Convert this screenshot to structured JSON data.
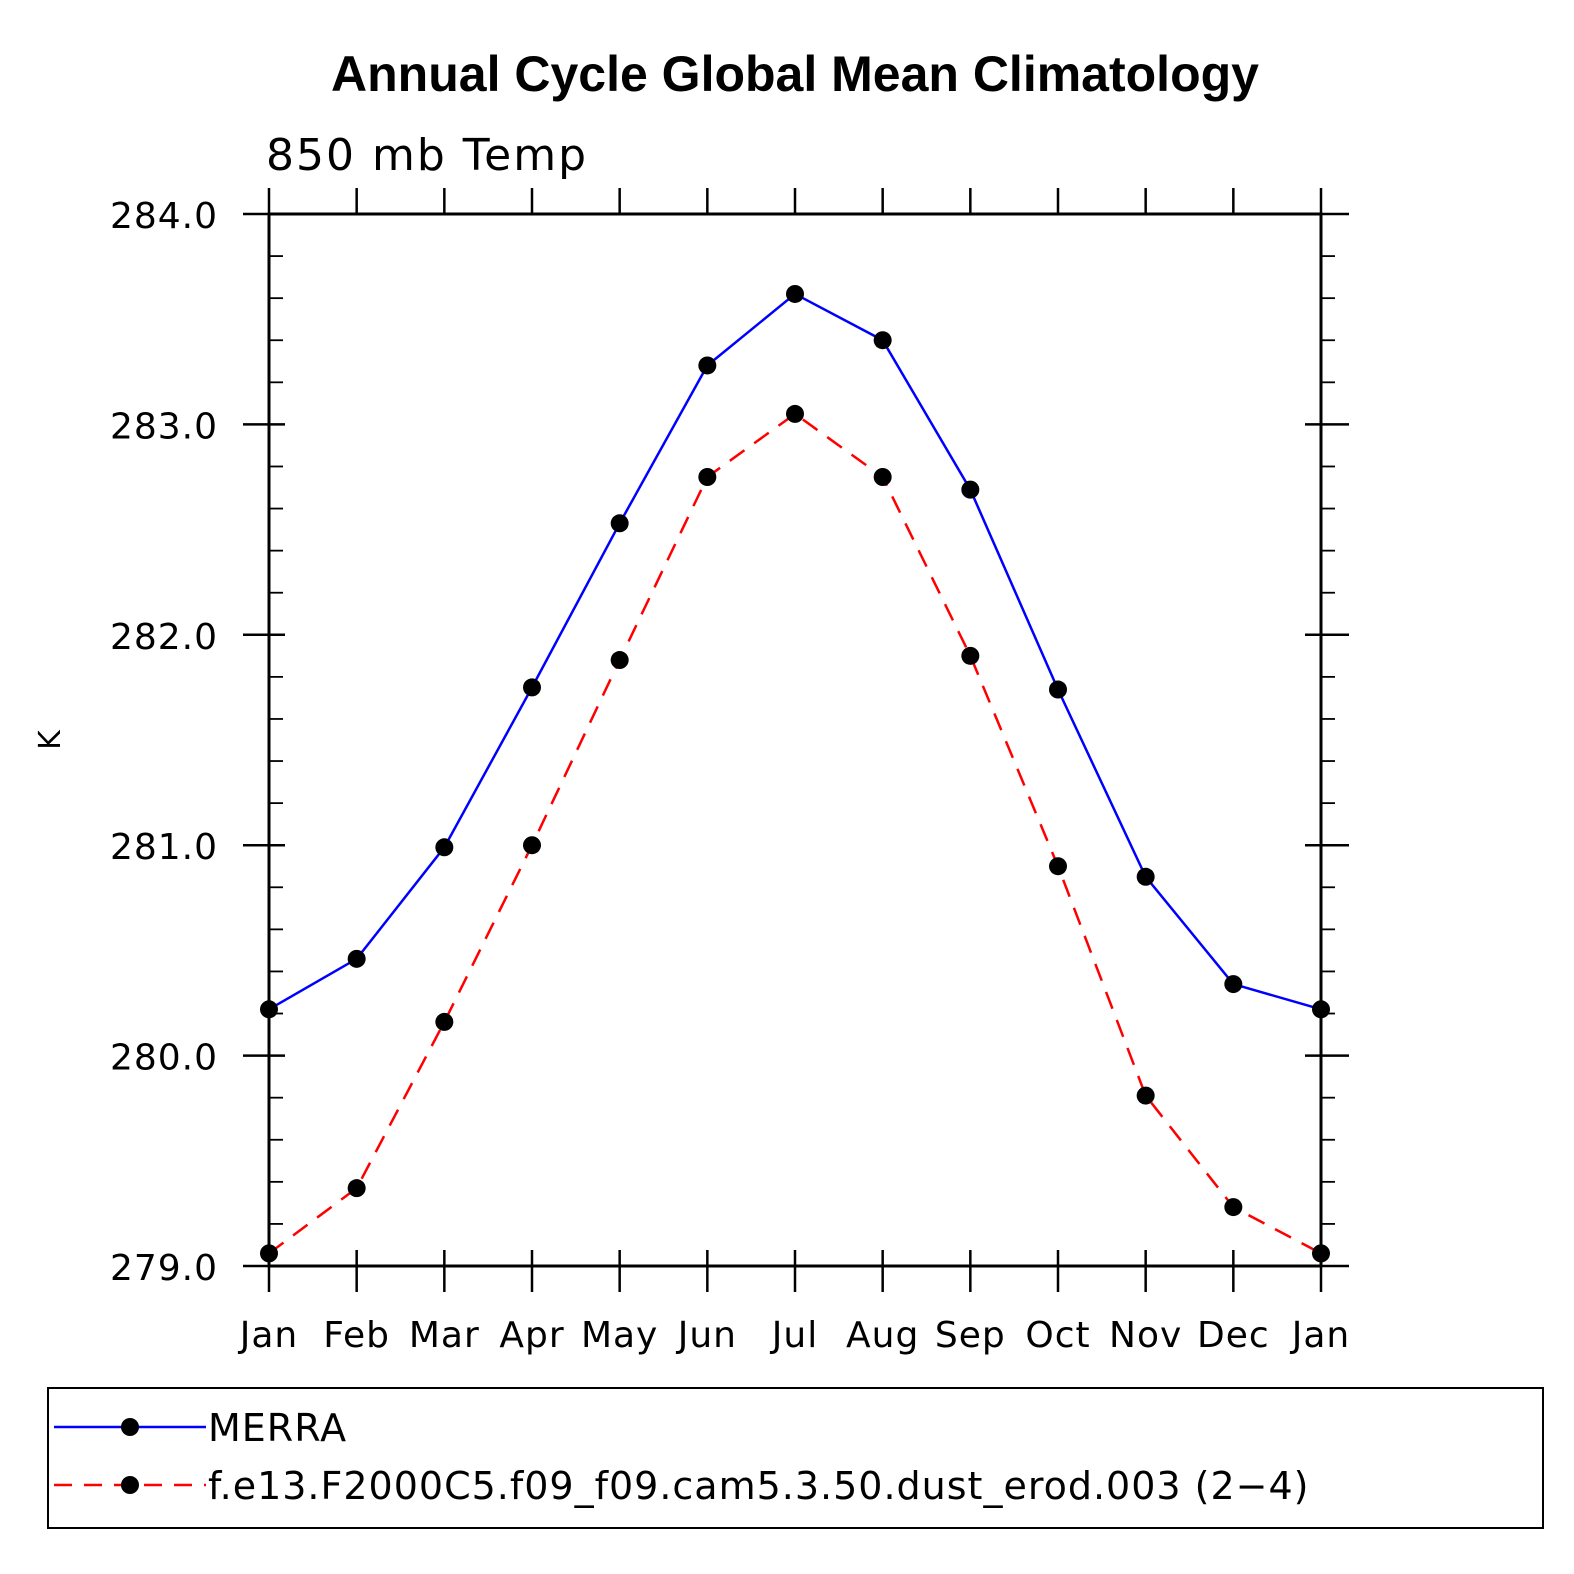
{
  "chart_data": {
    "type": "line",
    "title": "Annual Cycle Global Mean Climatology",
    "subtitle": "850 mb Temp",
    "xlabel": "",
    "ylabel": "K",
    "categories": [
      "Jan",
      "Feb",
      "Mar",
      "Apr",
      "May",
      "Jun",
      "Jul",
      "Aug",
      "Sep",
      "Oct",
      "Nov",
      "Dec",
      "Jan"
    ],
    "ylim": [
      279.0,
      284.0
    ],
    "yticks": [
      "279.0",
      "280.0",
      "281.0",
      "282.0",
      "283.0",
      "284.0"
    ],
    "grid": false,
    "legend_position": "bottom",
    "series": [
      {
        "name": "MERRA",
        "color": "#0000ff",
        "line_style": "solid",
        "marker": "filled-circle",
        "values": [
          280.22,
          280.46,
          280.99,
          281.75,
          282.53,
          283.28,
          283.62,
          283.4,
          282.69,
          281.74,
          280.85,
          280.34,
          280.22
        ]
      },
      {
        "name": "f.e13.F2000C5.f09_f09.cam5.3.50.dust_erod.003 (2−4)",
        "color": "#ff0000",
        "line_style": "dashed",
        "marker": "filled-circle",
        "values": [
          279.06,
          279.37,
          280.16,
          281.0,
          281.88,
          282.75,
          283.05,
          282.75,
          281.9,
          280.9,
          279.81,
          279.28,
          279.06
        ]
      }
    ]
  }
}
